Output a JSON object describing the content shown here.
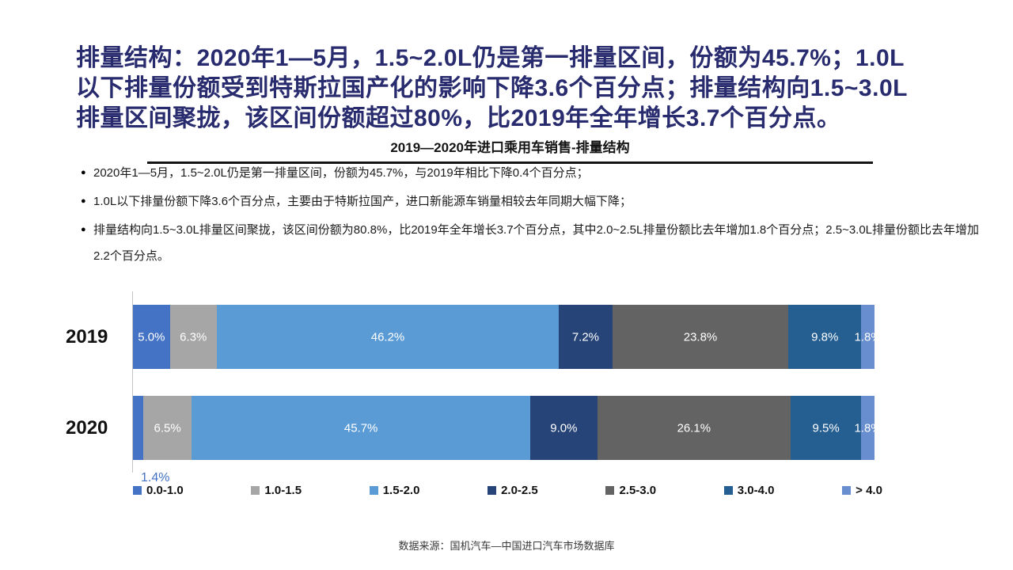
{
  "slide": {
    "heading_lines": [
      "排量结构：2020年1—5月，1.5~2.0L仍是第一排量区间，份额为45.7%；1.0L",
      "以下排量份额受到特斯拉国产化的影响下降3.6个百分点；排量结构向1.5~3.0L",
      "排量区间聚拢，该区间份额超过80%，比2019年全年增长3.7个百分点。"
    ],
    "chart_title": "2019—2020年进口乘用车销售-排量结构",
    "bullet_marker": "●",
    "bullets": [
      "2020年1—5月，1.5~2.0L仍是第一排量区间，份额为45.7%，与2019年相比下降0.4个百分点；",
      "1.0L以下排量份额下降3.6个百分点，主要由于特斯拉国产，进口新能源车销量相较去年同期大幅下降；",
      "排量结构向1.5~3.0L排量区间聚拢，该区间份额为80.8%，比2019年全年增长3.7个百分点，其中2.0~2.5L排量份额比去年增加1.8个百分点；2.5~3.0L排量份额比去年增加2.2个百分点。"
    ],
    "source": "数据来源：国机汽车—中国进口汽车市场数据库"
  },
  "chart_data": {
    "type": "bar",
    "orientation": "horizontal-stacked",
    "title": "2019—2020年进口乘用车销售-排量结构",
    "categories": [
      "2019",
      "2020"
    ],
    "series": [
      {
        "name": "0.0-1.0",
        "color": "#4472C4",
        "values": [
          5.0,
          1.4
        ]
      },
      {
        "name": "1.0-1.5",
        "color": "#A6A6A6",
        "values": [
          6.3,
          6.5
        ]
      },
      {
        "name": "1.5-2.0",
        "color": "#5B9BD5",
        "values": [
          46.2,
          45.7
        ]
      },
      {
        "name": "2.0-2.5",
        "color": "#264478",
        "values": [
          7.2,
          9.0
        ]
      },
      {
        "name": "2.5-3.0",
        "color": "#636363",
        "values": [
          23.8,
          26.1
        ]
      },
      {
        "name": "3.0-4.0",
        "color": "#255E91",
        "values": [
          9.8,
          9.5
        ]
      },
      {
        "name": "> 4.0",
        "color": "#698ED0",
        "values": [
          1.8,
          1.8
        ]
      }
    ],
    "value_suffix": "%",
    "xlim": [
      0,
      100
    ],
    "grid": false,
    "legend_position": "bottom",
    "label_color_inside": "#ffffff",
    "label_positions": [
      [
        "inside",
        "inside",
        "inside",
        "inside",
        "inside",
        "inside",
        "inside"
      ],
      [
        "below",
        "inside",
        "inside",
        "inside",
        "inside",
        "inside",
        "inside"
      ]
    ]
  }
}
